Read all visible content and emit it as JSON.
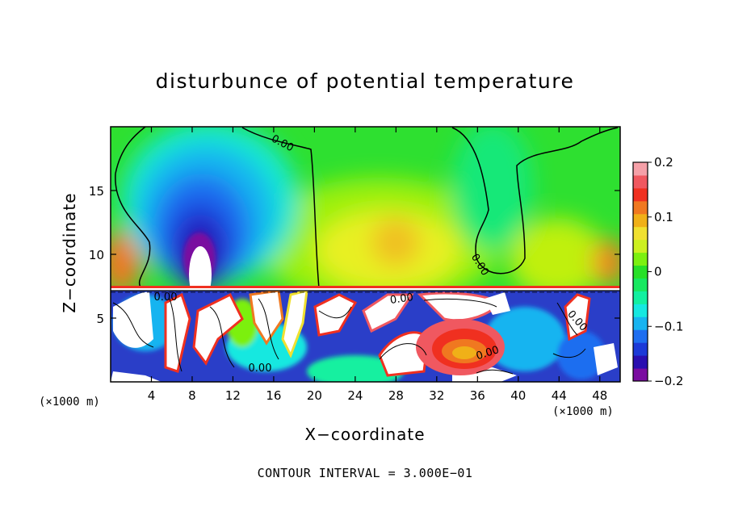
{
  "chart_data": {
    "type": "heatmap",
    "title": "disturbunce of potential temperature",
    "xlabel": "X−coordinate",
    "ylabel": "Z−coordinate",
    "x_unit": "(×1000 m)",
    "xlim": [
      0,
      50
    ],
    "ylim": [
      0,
      20
    ],
    "x_ticks": [
      "4",
      "8",
      "12",
      "16",
      "20",
      "24",
      "28",
      "32",
      "36",
      "40",
      "44",
      "48"
    ],
    "y_ticks": [
      "5",
      "10",
      "15"
    ],
    "colorbar": {
      "range": [
        -0.2,
        0.2
      ],
      "tick_labels": [
        "0.2",
        "0.1",
        "0",
        "−0.1",
        "−0.2"
      ],
      "colors": [
        "#7a0ca0",
        "#2a0fb0",
        "#1c3ad8",
        "#1e6ef0",
        "#18b4f0",
        "#16e8e0",
        "#12f0a0",
        "#18e860",
        "#28e028",
        "#7cf010",
        "#ccf020",
        "#f0e030",
        "#f0b018",
        "#f07820",
        "#f03020",
        "#f05860",
        "#f5a0a8"
      ]
    },
    "contour_labels": [
      "0.00",
      "0.00",
      "0.00",
      "0.00",
      "0.00",
      "0.00",
      "0.00"
    ],
    "contour_interval": "CONTOUR INTERVAL = 3.000E−01",
    "features": [
      {
        "name": "cold anomaly column",
        "x_range": [
          4,
          14
        ],
        "z_range": [
          9,
          19
        ],
        "min_value": -0.2
      },
      {
        "name": "warm region",
        "x_range": [
          22,
          34
        ],
        "z_range": [
          8,
          16
        ],
        "value": 0.07
      },
      {
        "name": "stratified layer interface",
        "z": 7.3
      }
    ]
  }
}
